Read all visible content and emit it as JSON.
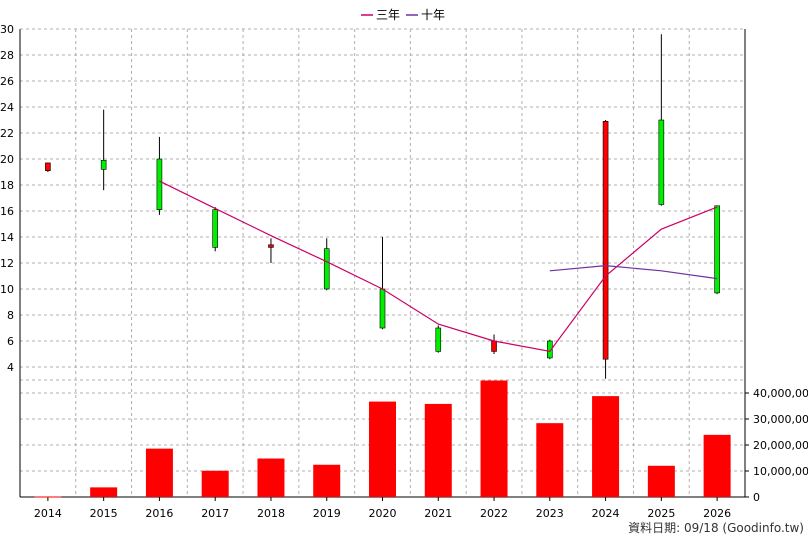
{
  "chart_data": {
    "type": "candlestick+bar",
    "categories": [
      "2014",
      "2015",
      "2016",
      "2017",
      "2018",
      "2019",
      "2020",
      "2021",
      "2022",
      "2023",
      "2024",
      "2025",
      "2026"
    ],
    "price_axis": {
      "ylim": [
        3,
        30
      ],
      "ticks": [
        4,
        6,
        8,
        10,
        12,
        14,
        16,
        18,
        20,
        22,
        24,
        26,
        28,
        30
      ]
    },
    "candles": [
      {
        "open": 19.1,
        "close": 19.7,
        "high": 19.7,
        "low": 19.0
      },
      {
        "open": 19.9,
        "close": 19.2,
        "high": 23.8,
        "low": 17.6
      },
      {
        "open": 20.0,
        "close": 16.1,
        "high": 21.7,
        "low": 15.7
      },
      {
        "open": 16.1,
        "close": 13.2,
        "high": 16.3,
        "low": 12.9
      },
      {
        "open": 13.2,
        "close": 13.4,
        "high": 13.9,
        "low": 12.0
      },
      {
        "open": 13.1,
        "close": 10.0,
        "high": 13.9,
        "low": 9.9
      },
      {
        "open": 10.0,
        "close": 7.0,
        "high": 14.0,
        "low": 6.9
      },
      {
        "open": 7.0,
        "close": 5.2,
        "high": 7.2,
        "low": 5.1
      },
      {
        "open": 5.2,
        "close": 6.0,
        "high": 6.5,
        "low": 5.0
      },
      {
        "open": 6.0,
        "close": 4.7,
        "high": 6.1,
        "low": 4.6
      },
      {
        "open": 4.6,
        "close": 22.9,
        "high": 23.0,
        "low": 3.1
      },
      {
        "open": 23.0,
        "close": 16.5,
        "high": 29.6,
        "low": 16.4
      },
      {
        "open": 16.4,
        "close": 9.7,
        "high": 16.4,
        "low": 9.6
      }
    ],
    "series": [
      {
        "name": "三年",
        "color": "#cc0066",
        "values": [
          null,
          null,
          18.3,
          16.2,
          14.1,
          12.1,
          10.0,
          7.3,
          6.0,
          5.2,
          11.0,
          14.6,
          16.3
        ]
      },
      {
        "name": "十年",
        "color": "#7030a0",
        "values": [
          null,
          null,
          null,
          null,
          null,
          null,
          null,
          null,
          null,
          11.4,
          11.8,
          11.4,
          10.8
        ]
      }
    ],
    "volume_axis": {
      "ylim": [
        0,
        45000000
      ],
      "ticks": [
        0,
        10000000,
        20000000,
        30000000,
        40000000
      ],
      "tick_labels": [
        "0",
        "10,000,000",
        "20,000,000",
        "30,000,000",
        "40,000,000"
      ]
    },
    "volume": [
      200000,
      3700000,
      18600000,
      10100000,
      14800000,
      12400000,
      36700000,
      35800000,
      44800000,
      28400000,
      38800000,
      12000000,
      23900000
    ],
    "colors": {
      "up": "#ff0000",
      "down": "#00ee00",
      "volume": "#ff0000",
      "grid": "#b0b0b0"
    },
    "grid": true,
    "legend_position": "top-center"
  },
  "legend": {
    "items": [
      {
        "label": "三年",
        "color": "#cc0066"
      },
      {
        "label": "十年",
        "color": "#7030a0"
      }
    ]
  },
  "source_note": "資料日期: 09/18  (Goodinfo.tw)"
}
